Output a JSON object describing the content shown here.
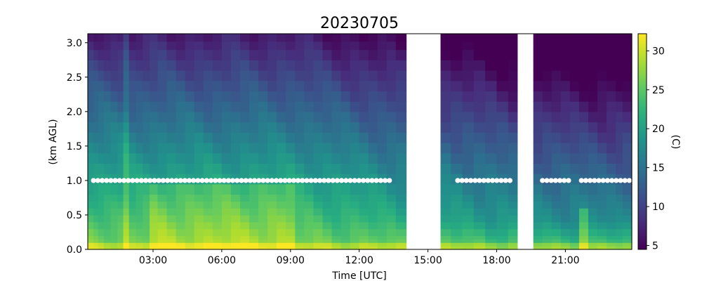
{
  "chart_data": {
    "type": "heatmap",
    "title": "20230705",
    "xlabel": "Time [UTC]",
    "ylabel": "(km AGL)",
    "colorbar_label": "(C)",
    "xlim_hours": [
      0.15,
      23.9
    ],
    "ylim": [
      0.0,
      3.13
    ],
    "x_ticks": [
      {
        "value": 3,
        "label": "03:00"
      },
      {
        "value": 6,
        "label": "06:00"
      },
      {
        "value": 9,
        "label": "09:00"
      },
      {
        "value": 12,
        "label": "12:00"
      },
      {
        "value": 15,
        "label": "15:00"
      },
      {
        "value": 18,
        "label": "18:00"
      },
      {
        "value": 21,
        "label": "21:00"
      }
    ],
    "y_ticks": [
      {
        "value": 0.0,
        "label": "0.0"
      },
      {
        "value": 0.5,
        "label": "0.5"
      },
      {
        "value": 1.0,
        "label": "1.0"
      },
      {
        "value": 1.5,
        "label": "1.5"
      },
      {
        "value": 2.0,
        "label": "2.0"
      },
      {
        "value": 2.5,
        "label": "2.5"
      },
      {
        "value": 3.0,
        "label": "3.0"
      }
    ],
    "colorbar": {
      "colormap": "viridis",
      "vmin": 4.5,
      "vmax": 32.2,
      "ticks": [
        {
          "value": 5,
          "label": "5"
        },
        {
          "value": 10,
          "label": "10"
        },
        {
          "value": 15,
          "label": "15"
        },
        {
          "value": 20,
          "label": "20"
        },
        {
          "value": 25,
          "label": "25"
        },
        {
          "value": 30,
          "label": "30"
        }
      ]
    },
    "missing_data_intervals_hours": [
      [
        14.05,
        15.55
      ],
      [
        18.9,
        19.6
      ]
    ],
    "marker_level_km": 1.0,
    "marker_segments_hours": [
      [
        0.4,
        13.4
      ],
      [
        16.3,
        18.6
      ],
      [
        20.0,
        21.3
      ],
      [
        21.7,
        23.9
      ]
    ],
    "marker_color": "#ffffff",
    "time_bins_hours": [
      0.15,
      0.4,
      0.6,
      0.85,
      1.15,
      1.45,
      1.7,
      1.95,
      2.25,
      2.55,
      2.85,
      3.2,
      3.6,
      4.0,
      4.4,
      4.8,
      5.2,
      5.6,
      6.0,
      6.4,
      6.8,
      7.2,
      7.6,
      8.0,
      8.4,
      8.8,
      9.2,
      9.6,
      10.0,
      10.4,
      10.8,
      11.2,
      11.6,
      12.0,
      12.4,
      12.8,
      13.2,
      13.6,
      14.05,
      15.55,
      16.0,
      16.5,
      17.0,
      17.5,
      18.0,
      18.5,
      18.9,
      19.6,
      20.0,
      20.4,
      20.8,
      21.2,
      21.6,
      22.0,
      22.4,
      22.8,
      23.2,
      23.5,
      23.9
    ],
    "height_bins_km": [
      0.0,
      0.05,
      0.1,
      0.15,
      0.2,
      0.3,
      0.4,
      0.5,
      0.6,
      0.7,
      0.8,
      0.95,
      1.1,
      1.25,
      1.4,
      1.55,
      1.7,
      1.85,
      2.0,
      2.15,
      2.3,
      2.45,
      2.6,
      2.75,
      2.9,
      3.02,
      3.13
    ]
  }
}
